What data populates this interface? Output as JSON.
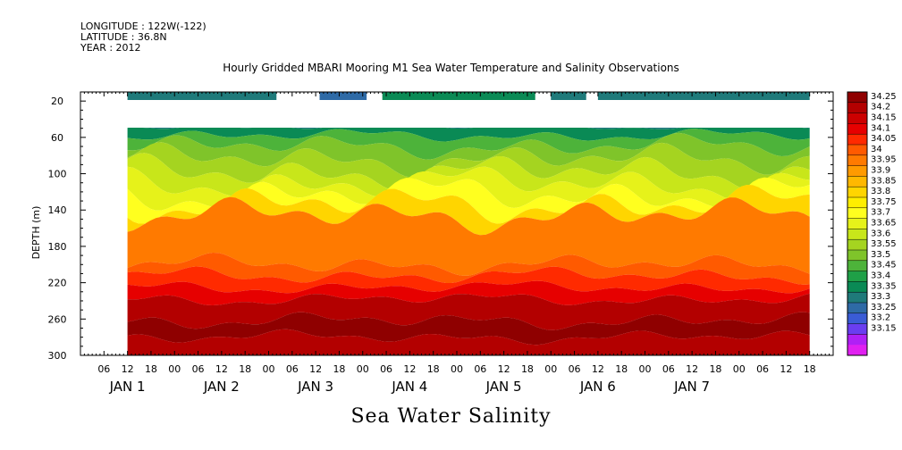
{
  "header": {
    "longitude": "LONGITUDE : 122W(-122)",
    "latitude": "LATITUDE : 36.8N",
    "year": "YEAR : 2012"
  },
  "chart_title": "Hourly Gridded MBARI Mooring M1 Sea Water Temperature and Salinity Observations",
  "bottom_title": "Sea Water Salinity",
  "chart_data": {
    "type": "heatmap",
    "title": "Hourly Gridded MBARI Mooring M1 Sea Water Temperature and Salinity Observations",
    "xlabel": "",
    "ylabel": "DEPTH (m)",
    "y_ticks": [
      20,
      60,
      100,
      140,
      180,
      220,
      260,
      300
    ],
    "ylim": [
      300,
      10
    ],
    "x_hour_labels": [
      "06",
      "12",
      "18",
      "00",
      "06",
      "12",
      "18",
      "00",
      "06",
      "12",
      "18",
      "00",
      "06",
      "12",
      "18",
      "00",
      "06",
      "12",
      "18",
      "00",
      "06",
      "12",
      "18",
      "00",
      "06",
      "12",
      "18",
      "00",
      "06",
      "12",
      "18"
    ],
    "x_day_labels": [
      "JAN 1",
      "JAN 2",
      "JAN 3",
      "JAN 4",
      "JAN 5",
      "JAN 6",
      "JAN 7"
    ],
    "data_start_hour": 12,
    "data_end_hour": 186,
    "top_depth": 40,
    "colorbar_levels": [
      "34.25",
      "34.2",
      "34.15",
      "34.1",
      "34.05",
      "34",
      "33.95",
      "33.9",
      "33.85",
      "33.8",
      "33.75",
      "33.7",
      "33.65",
      "33.6",
      "33.55",
      "33.5",
      "33.45",
      "33.4",
      "33.35",
      "33.3",
      "33.25",
      "33.2",
      "33.15"
    ],
    "colorbar_colors": [
      "#8f0000",
      "#b30000",
      "#cc0000",
      "#e60000",
      "#ff2a00",
      "#ff5a00",
      "#ff7a00",
      "#ff9a00",
      "#ffb800",
      "#ffd500",
      "#ffee00",
      "#ffff1f",
      "#e6f21a",
      "#c8e61a",
      "#a5d420",
      "#7fc42a",
      "#4db33a",
      "#1fa047",
      "#0a8a55",
      "#1f7a7a",
      "#2e6aa6",
      "#3a5cd6",
      "#6a3ef0",
      "#b020f5",
      "#e020f0"
    ],
    "surface_segments": [
      {
        "start": 12,
        "end": 50,
        "value": "33.3"
      },
      {
        "start": 61,
        "end": 73,
        "value": "33.25"
      },
      {
        "start": 77,
        "end": 116,
        "value": "33.35"
      },
      {
        "start": 120,
        "end": 129,
        "value": "33.3"
      },
      {
        "start": 132,
        "end": 184,
        "value": "33.3"
      },
      {
        "start": 180,
        "end": 186,
        "value": "33.3"
      }
    ]
  }
}
